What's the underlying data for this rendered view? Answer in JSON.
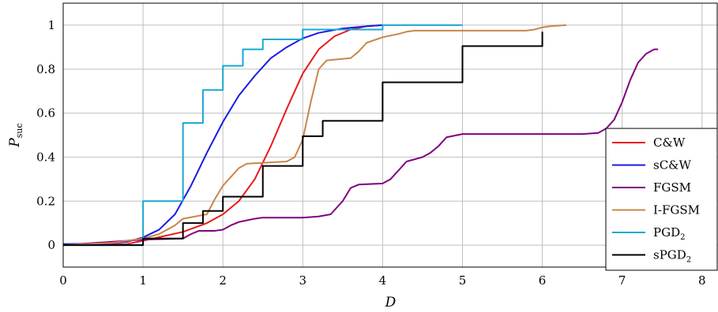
{
  "chart_data": {
    "type": "line",
    "xlabel": "D",
    "ylabel": "P",
    "ylabel_sub": "suc",
    "xlim": [
      0,
      8.2
    ],
    "ylim": [
      -0.1,
      1.1
    ],
    "grid": true,
    "legend_position": "right",
    "x_ticks": [
      0,
      1,
      2,
      3,
      4,
      5,
      6,
      7,
      8
    ],
    "x_tick_labels": [
      "0",
      "1",
      "2",
      "3",
      "4",
      "5",
      "6",
      "7",
      "8"
    ],
    "y_ticks": [
      0,
      0.2,
      0.4,
      0.6,
      0.8,
      1
    ],
    "y_tick_labels": [
      "0",
      "0.2",
      "0.4",
      "0.6",
      "0.8",
      "1"
    ],
    "series": [
      {
        "name": "C&W",
        "name_base": "C&W",
        "name_sub": "",
        "color": "#e8191b",
        "step": false,
        "x": [
          0,
          0.8,
          1.0,
          1.5,
          1.8,
          2.0,
          2.2,
          2.4,
          2.6,
          2.8,
          3.0,
          3.2,
          3.4,
          3.6,
          3.8,
          4.0
        ],
        "y": [
          0,
          0.005,
          0.02,
          0.06,
          0.1,
          0.14,
          0.2,
          0.3,
          0.45,
          0.62,
          0.78,
          0.89,
          0.95,
          0.98,
          0.995,
          1.0
        ]
      },
      {
        "name": "sC&W",
        "name_base": "sC&W",
        "name_sub": "",
        "color": "#1a1ae6",
        "step": false,
        "x": [
          0,
          0.5,
          0.8,
          1.0,
          1.2,
          1.4,
          1.6,
          1.8,
          2.0,
          2.2,
          2.4,
          2.6,
          2.8,
          3.0,
          3.2,
          3.5,
          3.8,
          4.0
        ],
        "y": [
          0.005,
          0.007,
          0.015,
          0.035,
          0.07,
          0.14,
          0.27,
          0.42,
          0.56,
          0.68,
          0.77,
          0.85,
          0.9,
          0.94,
          0.965,
          0.985,
          0.995,
          1.0
        ]
      },
      {
        "name": "FGSM",
        "name_base": "FGSM",
        "name_sub": "",
        "color": "#800080",
        "step": false,
        "x": [
          0,
          1.0,
          1.5,
          1.6,
          1.7,
          1.9,
          2.0,
          2.1,
          2.2,
          2.4,
          2.5,
          2.6,
          2.8,
          3.0,
          3.2,
          3.35,
          3.5,
          3.6,
          3.7,
          4.0,
          4.1,
          4.2,
          4.3,
          4.5,
          4.6,
          4.7,
          4.8,
          5.0,
          6.0,
          6.5,
          6.7,
          6.8,
          6.9,
          7.0,
          7.1,
          7.2,
          7.3,
          7.4,
          7.45
        ],
        "y": [
          0,
          0.025,
          0.03,
          0.05,
          0.065,
          0.065,
          0.07,
          0.09,
          0.105,
          0.12,
          0.125,
          0.125,
          0.125,
          0.125,
          0.13,
          0.14,
          0.2,
          0.26,
          0.275,
          0.28,
          0.3,
          0.34,
          0.38,
          0.4,
          0.42,
          0.45,
          0.49,
          0.505,
          0.505,
          0.505,
          0.51,
          0.53,
          0.57,
          0.65,
          0.75,
          0.83,
          0.87,
          0.89,
          0.89
        ]
      },
      {
        "name": "I-FGSM",
        "name_base": "I-FGSM",
        "name_sub": "",
        "color": "#c8864a",
        "step": false,
        "x": [
          0,
          0.6,
          0.8,
          1.0,
          1.2,
          1.4,
          1.5,
          1.8,
          1.9,
          2.0,
          2.1,
          2.2,
          2.3,
          2.8,
          2.9,
          3.0,
          3.1,
          3.2,
          3.3,
          3.6,
          3.7,
          3.8,
          4.0,
          4.2,
          4.3,
          4.4,
          5.0,
          5.8,
          5.9,
          6.0,
          6.1,
          6.3
        ],
        "y": [
          0,
          0.01,
          0.02,
          0.03,
          0.05,
          0.09,
          0.12,
          0.14,
          0.21,
          0.27,
          0.31,
          0.35,
          0.37,
          0.38,
          0.4,
          0.48,
          0.65,
          0.8,
          0.84,
          0.85,
          0.88,
          0.92,
          0.945,
          0.96,
          0.97,
          0.975,
          0.975,
          0.975,
          0.98,
          0.99,
          0.995,
          1.0
        ]
      },
      {
        "name": "PGD2",
        "name_base": "PGD",
        "name_sub": "2",
        "color": "#17a8d4",
        "step": true,
        "x": [
          0,
          1.0,
          1.5,
          1.75,
          2.0,
          2.25,
          2.5,
          3.0,
          4.0,
          5.0
        ],
        "y": [
          0,
          0.2,
          0.555,
          0.705,
          0.815,
          0.89,
          0.935,
          0.98,
          1.0,
          1.0
        ]
      },
      {
        "name": "sPGD2",
        "name_base": "sPGD",
        "name_sub": "2",
        "color": "#000000",
        "step": true,
        "x": [
          0,
          1.0,
          1.5,
          1.75,
          2.0,
          2.5,
          3.0,
          3.25,
          4.0,
          5.0,
          6.0
        ],
        "y": [
          0,
          0.03,
          0.1,
          0.155,
          0.22,
          0.36,
          0.495,
          0.565,
          0.74,
          0.905,
          0.97
        ]
      }
    ]
  }
}
